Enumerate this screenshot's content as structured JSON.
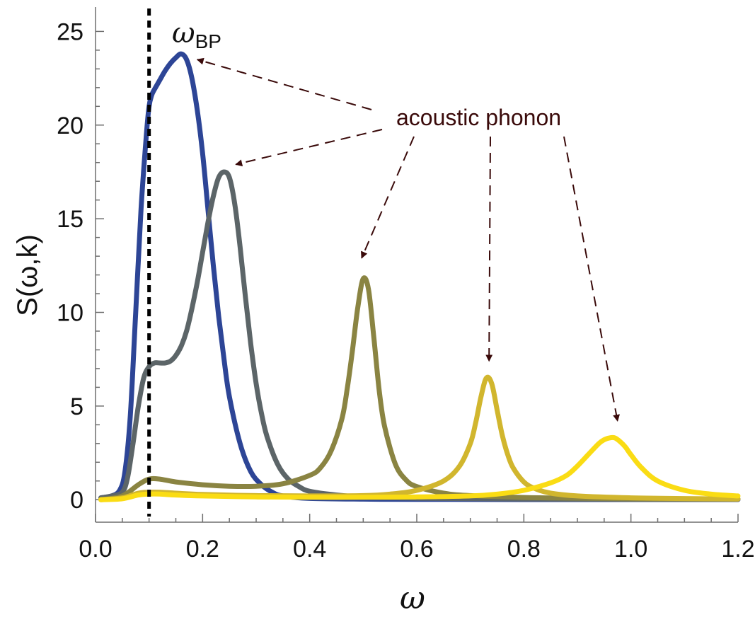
{
  "chart_data": {
    "type": "line",
    "xlabel": "ω",
    "ylabel": "S(ω,k)",
    "xlim": [
      0.0,
      1.2
    ],
    "ylim": [
      -1.2,
      26.3
    ],
    "x_ticks": [
      "0.0",
      "0.2",
      "0.4",
      "0.6",
      "0.8",
      "1.0",
      "1.2"
    ],
    "y_ticks": [
      "0",
      "5",
      "10",
      "15",
      "20",
      "25"
    ],
    "grid": false,
    "legend": "none",
    "vline": {
      "x": 0.1,
      "label_main": "ω",
      "label_sub": "BP",
      "style": "dotted",
      "color": "#000000"
    },
    "annotation": {
      "text": "acoustic phonon",
      "color": "#3a0a0a",
      "targets": [
        {
          "series": 0,
          "x": 0.19,
          "y": 23.5
        },
        {
          "series": 1,
          "x": 0.262,
          "y": 17.9
        },
        {
          "series": 2,
          "x": 0.497,
          "y": 12.9
        },
        {
          "series": 3,
          "x": 0.735,
          "y": 7.4
        },
        {
          "series": 4,
          "x": 0.975,
          "y": 4.2
        }
      ]
    },
    "series": [
      {
        "color": "#2d4596",
        "x": [
          0.01,
          0.03,
          0.045,
          0.055,
          0.065,
          0.075,
          0.085,
          0.095,
          0.1,
          0.105,
          0.11,
          0.12,
          0.13,
          0.14,
          0.15,
          0.16,
          0.17,
          0.18,
          0.19,
          0.2,
          0.21,
          0.22,
          0.23,
          0.24,
          0.25,
          0.27,
          0.29,
          0.31,
          0.33,
          0.35,
          0.4,
          0.5,
          0.6,
          0.8,
          1.0,
          1.2
        ],
        "y": [
          0.1,
          0.2,
          0.5,
          1.5,
          4.5,
          10.0,
          15.5,
          19.5,
          21.0,
          21.6,
          21.9,
          22.4,
          22.9,
          23.3,
          23.6,
          23.8,
          23.5,
          22.5,
          20.8,
          18.5,
          15.5,
          12.5,
          9.8,
          7.5,
          5.5,
          3.0,
          1.5,
          0.8,
          0.4,
          0.2,
          0.07,
          0.03,
          0.02,
          0.01,
          0.01,
          0.01
        ]
      },
      {
        "color": "#5c6568",
        "x": [
          0.01,
          0.03,
          0.05,
          0.06,
          0.07,
          0.08,
          0.09,
          0.1,
          0.11,
          0.12,
          0.13,
          0.14,
          0.15,
          0.16,
          0.17,
          0.18,
          0.19,
          0.2,
          0.21,
          0.22,
          0.23,
          0.24,
          0.25,
          0.26,
          0.27,
          0.28,
          0.29,
          0.3,
          0.31,
          0.32,
          0.34,
          0.36,
          0.38,
          0.4,
          0.45,
          0.5,
          0.6,
          0.8,
          1.0,
          1.2
        ],
        "y": [
          0.1,
          0.2,
          0.4,
          1.2,
          3.0,
          5.0,
          6.5,
          7.1,
          7.3,
          7.3,
          7.3,
          7.4,
          7.7,
          8.2,
          9.0,
          10.2,
          11.6,
          13.2,
          14.8,
          16.2,
          17.2,
          17.5,
          17.2,
          15.8,
          13.5,
          10.8,
          8.3,
          6.2,
          4.6,
          3.4,
          1.9,
          1.1,
          0.7,
          0.45,
          0.25,
          0.15,
          0.08,
          0.04,
          0.02,
          0.02
        ]
      },
      {
        "color": "#8a8442",
        "x": [
          0.01,
          0.05,
          0.08,
          0.1,
          0.12,
          0.15,
          0.2,
          0.25,
          0.3,
          0.35,
          0.4,
          0.42,
          0.44,
          0.46,
          0.47,
          0.48,
          0.49,
          0.5,
          0.51,
          0.52,
          0.53,
          0.54,
          0.56,
          0.58,
          0.6,
          0.65,
          0.7,
          0.8,
          0.9,
          1.0,
          1.2
        ],
        "y": [
          0.0,
          0.2,
          0.8,
          1.1,
          1.1,
          0.95,
          0.8,
          0.72,
          0.72,
          0.85,
          1.3,
          1.7,
          2.6,
          4.3,
          5.9,
          8.0,
          10.3,
          11.8,
          11.2,
          8.6,
          5.8,
          3.9,
          1.9,
          1.05,
          0.7,
          0.35,
          0.22,
          0.12,
          0.08,
          0.05,
          0.03
        ]
      },
      {
        "color": "#d1b62e",
        "x": [
          0.01,
          0.05,
          0.08,
          0.1,
          0.12,
          0.15,
          0.2,
          0.3,
          0.4,
          0.5,
          0.55,
          0.6,
          0.65,
          0.68,
          0.7,
          0.71,
          0.72,
          0.73,
          0.74,
          0.75,
          0.76,
          0.77,
          0.78,
          0.8,
          0.82,
          0.85,
          0.9,
          1.0,
          1.1,
          1.2
        ],
        "y": [
          0.0,
          0.1,
          0.35,
          0.4,
          0.4,
          0.35,
          0.28,
          0.22,
          0.2,
          0.22,
          0.3,
          0.5,
          1.0,
          1.8,
          3.0,
          4.1,
          5.5,
          6.5,
          6.2,
          4.8,
          3.4,
          2.4,
          1.7,
          0.95,
          0.6,
          0.35,
          0.2,
          0.1,
          0.06,
          0.04
        ]
      },
      {
        "color": "#fadc14",
        "x": [
          0.01,
          0.05,
          0.08,
          0.1,
          0.12,
          0.15,
          0.2,
          0.3,
          0.4,
          0.5,
          0.6,
          0.7,
          0.75,
          0.8,
          0.85,
          0.88,
          0.9,
          0.92,
          0.94,
          0.95,
          0.96,
          0.97,
          0.98,
          0.99,
          1.0,
          1.02,
          1.05,
          1.1,
          1.15,
          1.2
        ],
        "y": [
          0.0,
          0.05,
          0.25,
          0.3,
          0.3,
          0.25,
          0.2,
          0.15,
          0.13,
          0.13,
          0.15,
          0.2,
          0.3,
          0.5,
          0.9,
          1.3,
          1.8,
          2.4,
          3.0,
          3.2,
          3.3,
          3.3,
          3.1,
          2.8,
          2.4,
          1.7,
          1.0,
          0.5,
          0.3,
          0.2
        ]
      }
    ]
  }
}
